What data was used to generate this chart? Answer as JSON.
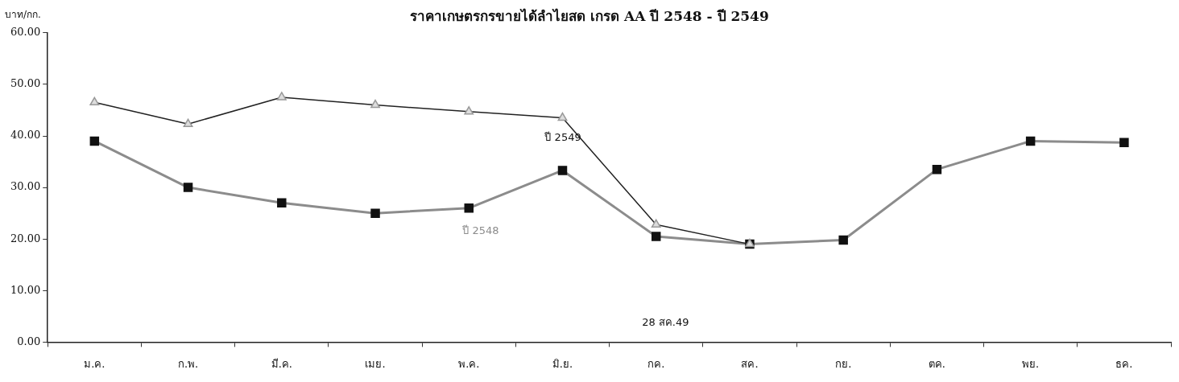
{
  "chart_data": {
    "type": "line",
    "title": "ราคาเกษตรกรขายได้ลำไยสด เกรด AA ปี 2548 - ปี 2549",
    "ylabel": "บาท/กก.",
    "categories": [
      "ม.ค.",
      "ก.พ.",
      "มี.ค.",
      "เมย.",
      "พ.ค.",
      "มิ.ย.",
      "กค.",
      "สค.",
      "กย.",
      "ตค.",
      "พย.",
      "ธค."
    ],
    "series": [
      {
        "name": "ปี 2549",
        "color": "#222222",
        "marker": "triangle",
        "values": [
          46.5,
          42.3,
          47.5,
          46,
          44.7,
          43.5,
          22.8,
          19,
          null,
          null,
          null,
          null
        ]
      },
      {
        "name": "ปี 2548",
        "color": "#8c8c8c",
        "marker": "square",
        "values": [
          39,
          30,
          27,
          25,
          26,
          33.3,
          20.5,
          19,
          19.8,
          33.5,
          39,
          38.7
        ]
      }
    ],
    "annotations": [
      "28 สค.49"
    ],
    "ylim": [
      0,
      60
    ],
    "yticks": [
      {
        "value": 0,
        "label": "0.00"
      },
      {
        "value": 10,
        "label": "10.00"
      },
      {
        "value": 20,
        "label": "20.00"
      },
      {
        "value": 30,
        "label": "30.00"
      },
      {
        "value": 40,
        "label": "40.00"
      },
      {
        "value": 50,
        "label": "50.00"
      },
      {
        "value": 60,
        "label": "60.00"
      }
    ],
    "grid": false,
    "legend": false,
    "line_style": "solid"
  }
}
